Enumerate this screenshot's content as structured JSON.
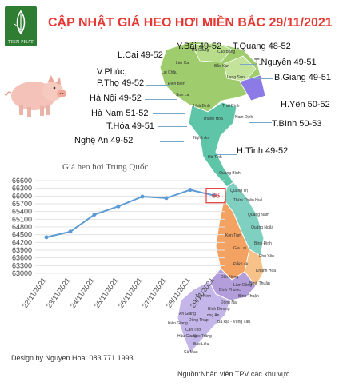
{
  "brand": {
    "logo_text": "TIEN PHAT"
  },
  "title": "CẬP NHẬT GIÁ HEO HƠI MIỀN BẮC 29/11/2021",
  "price_labels": [
    {
      "name": "L.Cai",
      "text": "L.Cai 49-52"
    },
    {
      "name": "Y.Bai",
      "text": "Y.Bái 49-52"
    },
    {
      "name": "T.Quang",
      "text": "T.Quang 48-52"
    },
    {
      "name": "T.Nguyen",
      "text": "T.Nguyên 49-51"
    },
    {
      "name": "V.Phuc",
      "text": "V.Phúc,"
    },
    {
      "name": "P.Tho",
      "text": "P.Thọ 49-52"
    },
    {
      "name": "B.Giang",
      "text": "B.Giang 49-51"
    },
    {
      "name": "Ha-Noi",
      "text": "Hà Nội 49-52"
    },
    {
      "name": "H.Yen",
      "text": "H.Yên 50-52"
    },
    {
      "name": "Ha-Nam",
      "text": "Hà Nam 51-52"
    },
    {
      "name": "T.Hoa",
      "text": "T.Hóa 49-51"
    },
    {
      "name": "T.Binh",
      "text": "T.Bình 50-53"
    },
    {
      "name": "Nghe-An",
      "text": "Nghệ An 49-52"
    },
    {
      "name": "H.Tinh",
      "text": "H.Tĩnh 49-52"
    }
  ],
  "map_provinces": [
    "Hà Giang",
    "Cao Bằng",
    "Lào Cai",
    "Bắc Kạn",
    "Lai Châu",
    "Lạng Sơn",
    "Điện Biên",
    "Hoà Bình",
    "Thái Bình",
    "Sơn La",
    "Thanh Hoá",
    "Nam Định",
    "Nghệ An",
    "Hà Tĩnh",
    "Quảng Bình",
    "Quảng Trị",
    "Thừa Thiên Huế",
    "Quảng Nam",
    "Quảng Ngãi",
    "Kon Tum",
    "Gia Lai",
    "Bình Định",
    "Phú Yên",
    "Đắk Lắk",
    "Khánh Hòa",
    "Đắk Nông",
    "Lâm Đồng",
    "Ninh Thuận",
    "Bình Phước",
    "Bình Thuận",
    "Tây Ninh",
    "Đồng Nai",
    "Bình Dương",
    "Long An",
    "Bà Rịa - Vũng Tàu",
    "Kiên Giang",
    "Đồng Tháp",
    "An Giang",
    "Cần Thơ",
    "Hậu Giang",
    "Sóc Trăng",
    "Bạc Liêu",
    "Cà Mau"
  ],
  "chart_data": {
    "type": "line",
    "title": "Giá heo hơi Trung Quốc",
    "categories": [
      "22/11/2021",
      "23/11/2021",
      "24/11/2021",
      "25/11/2021",
      "26/11/2021",
      "27/11/2021",
      "28/11/2021",
      "29/11/2021"
    ],
    "values": [
      64400,
      64620,
      65280,
      65600,
      65980,
      65920,
      66240,
      66020
    ],
    "ylim": [
      63000,
      66600
    ],
    "yticks": [
      63000,
      63300,
      63600,
      63900,
      64200,
      64500,
      64800,
      65100,
      65400,
      65700,
      66000,
      66300,
      66600
    ],
    "grid": true,
    "color": "#5b9bd5",
    "marker_label": "66"
  },
  "credit": "Design by Nguyen Hoa: 083.771.1993",
  "source": "Nguồn:Nhân viên TPV các khu vực"
}
